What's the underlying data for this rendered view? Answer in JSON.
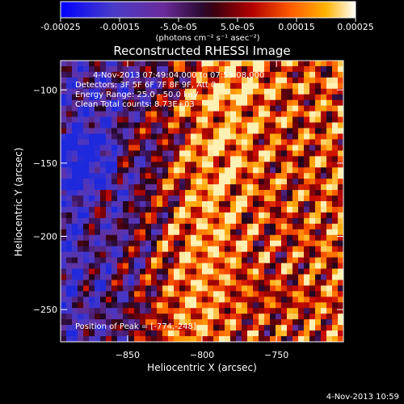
{
  "colorbar": {
    "ticks": [
      "-0.00025",
      "-0.00015",
      "-5.0e-05",
      "5.0e-05",
      "0.00015",
      "0.00025"
    ],
    "units_line": "(photons cm⁻² s⁻¹ asec⁻²)",
    "range": [
      -0.00025,
      0.00025
    ]
  },
  "chart_data": {
    "type": "heatmap",
    "title": "Reconstructed RHESSI Image",
    "xlabel": "Heliocentric X (arcsec)",
    "ylabel": "Heliocentric Y (arcsec)",
    "xlim": [
      -895,
      -705
    ],
    "ylim": [
      -272,
      -80
    ],
    "x_ticks": [
      -850,
      -800,
      -750
    ],
    "y_ticks": [
      -250,
      -200,
      -150,
      -100
    ],
    "x_tick_labels": [
      "−850",
      "−800",
      "−750"
    ],
    "y_tick_labels": [
      "−250",
      "−200",
      "−150",
      "−100"
    ],
    "annotations": [
      "4-Nov-2013 07:49:04.000 to 07:53:08.000",
      "Detectors: 3F 5F 6F 7F 8F 9F, Att 0",
      "Energy Range: 25.0 - 50.0 keV",
      "Clean     Total counts: 8.73E+03"
    ],
    "peak_label": "Position of Peak = [-774,-248]",
    "peak": [
      -774,
      -248
    ]
  },
  "footer": {
    "timestamp": "4-Nov-2013 10:59"
  }
}
